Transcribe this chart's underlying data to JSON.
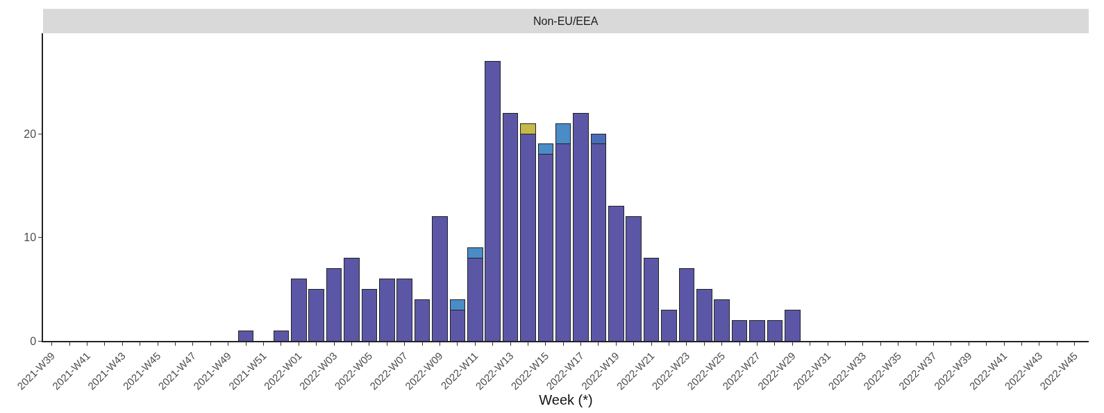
{
  "chart_data": {
    "type": "bar",
    "title": "Non-EU/EEA",
    "xlabel": "Week (*)",
    "stacked": true,
    "categories": [
      "2021-W39",
      null,
      "2021-W41",
      null,
      "2021-W43",
      null,
      "2021-W45",
      null,
      "2021-W47",
      null,
      "2021-W49",
      null,
      "2021-W51",
      null,
      "2022-W01",
      null,
      "2022-W03",
      null,
      "2022-W05",
      null,
      "2022-W07",
      null,
      "2022-W09",
      null,
      "2022-W11",
      null,
      "2022-W13",
      null,
      "2022-W15",
      null,
      "2022-W17",
      null,
      "2022-W19",
      null,
      "2022-W21",
      null,
      "2022-W23",
      null,
      "2022-W25",
      null,
      "2022-W27",
      null,
      "2022-W29",
      null,
      "2022-W31",
      null,
      "2022-W33",
      null,
      "2022-W35",
      null,
      "2022-W37",
      null,
      "2022-W39",
      null,
      "2022-W41",
      null,
      "2022-W43",
      null,
      "2022-W45"
    ],
    "series": [
      {
        "color": "#5b57a6",
        "values": [
          null,
          null,
          null,
          null,
          null,
          null,
          null,
          null,
          null,
          null,
          null,
          1,
          null,
          1,
          6,
          5,
          7,
          8,
          5,
          6,
          6,
          4,
          12,
          3,
          8,
          27,
          22,
          20,
          18,
          19,
          22,
          19,
          13,
          12,
          8,
          3,
          7,
          5,
          4,
          2,
          2,
          2,
          3,
          null,
          null,
          null,
          null,
          null,
          null,
          null,
          null,
          null,
          null,
          null,
          null,
          null,
          null,
          null,
          null
        ]
      },
      {
        "color": "#4a8cc6",
        "values": [
          null,
          null,
          null,
          null,
          null,
          null,
          null,
          null,
          null,
          null,
          null,
          null,
          null,
          null,
          null,
          null,
          null,
          null,
          null,
          null,
          null,
          null,
          null,
          1,
          1,
          null,
          null,
          null,
          1,
          2,
          null,
          null,
          null,
          null,
          null,
          null,
          null,
          null,
          null,
          null,
          null,
          null,
          null,
          null,
          null,
          null,
          null,
          null,
          null,
          null,
          null,
          null,
          null,
          null,
          null,
          null,
          null,
          null,
          null
        ]
      },
      {
        "color": "#4a6cb8",
        "values": [
          null,
          null,
          null,
          null,
          null,
          null,
          null,
          null,
          null,
          null,
          null,
          null,
          null,
          null,
          null,
          null,
          null,
          null,
          null,
          null,
          null,
          null,
          null,
          null,
          null,
          null,
          null,
          null,
          null,
          null,
          null,
          1,
          null,
          null,
          null,
          null,
          null,
          null,
          null,
          null,
          null,
          null,
          null,
          null,
          null,
          null,
          null,
          null,
          null,
          null,
          null,
          null,
          null,
          null,
          null,
          null,
          null,
          null,
          null
        ]
      },
      {
        "color": "#c4b94a",
        "values": [
          null,
          null,
          null,
          null,
          null,
          null,
          null,
          null,
          null,
          null,
          null,
          null,
          null,
          null,
          null,
          null,
          null,
          null,
          null,
          null,
          null,
          null,
          null,
          null,
          null,
          null,
          null,
          1,
          null,
          null,
          null,
          null,
          null,
          null,
          null,
          null,
          null,
          null,
          null,
          null,
          null,
          null,
          null,
          null,
          null,
          null,
          null,
          null,
          null,
          null,
          null,
          null,
          null,
          null,
          null,
          null,
          null,
          null,
          null
        ]
      }
    ],
    "ylim": [
      0,
      29.7
    ],
    "yticks": [
      0,
      10,
      20
    ]
  }
}
